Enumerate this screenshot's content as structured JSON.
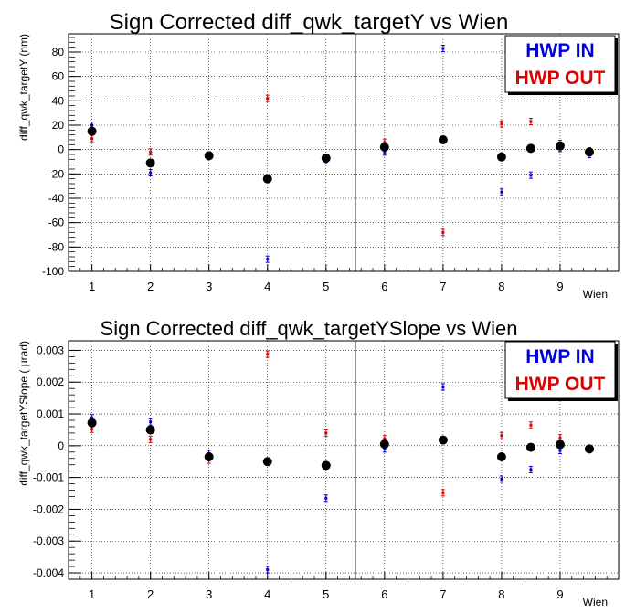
{
  "chart_data": [
    {
      "type": "scatter",
      "title": "Sign Corrected diff_qwk_targetY vs Wien",
      "xlabel": "Wien",
      "ylabel": "diff_qwk_targetY (nm)",
      "xlim": [
        0.6,
        10.0
      ],
      "ylim": [
        -100,
        95
      ],
      "x_ticks": [
        "1",
        "2",
        "3",
        "4",
        "5",
        "6",
        "7",
        "8",
        "9"
      ],
      "y_ticks": [
        "80",
        "60",
        "40",
        "20",
        "0",
        "-20",
        "-40",
        "-60",
        "-80",
        "-100"
      ],
      "grid": true,
      "legend": "top-right",
      "divider_x": 5.5,
      "series": [
        {
          "name": "HWP IN",
          "color": "#0000dd",
          "x": [
            1,
            2,
            3,
            4,
            5,
            6,
            7,
            8,
            8.5,
            9,
            9.5
          ],
          "y": [
            20,
            -19,
            -5,
            -90,
            -8,
            -2,
            83,
            -35,
            -21,
            1,
            -4
          ]
        },
        {
          "name": "HWP OUT",
          "color": "#dd0000",
          "x": [
            1,
            2,
            3,
            4,
            5,
            6,
            7,
            8,
            8.5,
            9,
            9.5
          ],
          "y": [
            9,
            -2,
            -5,
            42,
            -7,
            6,
            -68,
            21,
            23,
            5,
            -1
          ]
        },
        {
          "color": "#000000",
          "x": [
            1,
            2,
            3,
            4,
            5,
            6,
            7,
            8,
            8.5,
            9,
            9.5
          ],
          "y": [
            15,
            -11,
            -5,
            -24,
            -7,
            2,
            8,
            -6,
            1,
            3,
            -2
          ]
        }
      ]
    },
    {
      "type": "scatter",
      "title": "Sign Corrected diff_qwk_targetYSlope vs Wien",
      "xlabel": "Wien",
      "ylabel": "diff_qwk_targetYSlope (   μrad)",
      "xlim": [
        0.6,
        10.0
      ],
      "ylim": [
        -0.0042,
        0.0033
      ],
      "x_ticks": [
        "1",
        "2",
        "3",
        "4",
        "5",
        "6",
        "7",
        "8",
        "9"
      ],
      "y_ticks": [
        "0.003",
        "0.002",
        "0.001",
        "0",
        "-0.001",
        "-0.002",
        "-0.003",
        "-0.004"
      ],
      "grid": true,
      "legend": "top-right",
      "divider_x": 5.5,
      "series": [
        {
          "name": "HWP IN",
          "color": "#0000dd",
          "x": [
            1,
            2,
            3,
            4,
            5,
            6,
            7,
            8,
            8.5,
            9,
            9.5
          ],
          "y": [
            0.00088,
            0.00075,
            -0.00025,
            -0.0039,
            -0.00165,
            -0.0001,
            0.00185,
            -0.00105,
            -0.00075,
            -0.00015,
            -0.00012
          ]
        },
        {
          "name": "HWP OUT",
          "color": "#dd0000",
          "x": [
            1,
            2,
            3,
            4,
            5,
            6,
            7,
            8,
            8.5,
            9,
            9.5
          ],
          "y": [
            0.00052,
            0.0002,
            -0.00045,
            0.00288,
            0.0004,
            0.00022,
            -0.00148,
            0.00032,
            0.00065,
            0.00025,
            -8e-05
          ]
        },
        {
          "color": "#000000",
          "x": [
            1,
            2,
            3,
            4,
            5,
            6,
            7,
            8,
            8.5,
            9,
            9.5
          ],
          "y": [
            0.00072,
            0.0005,
            -0.00035,
            -0.0005,
            -0.00062,
            5e-05,
            0.00018,
            -0.00035,
            -5e-05,
            4e-05,
            -0.0001
          ]
        }
      ]
    }
  ]
}
